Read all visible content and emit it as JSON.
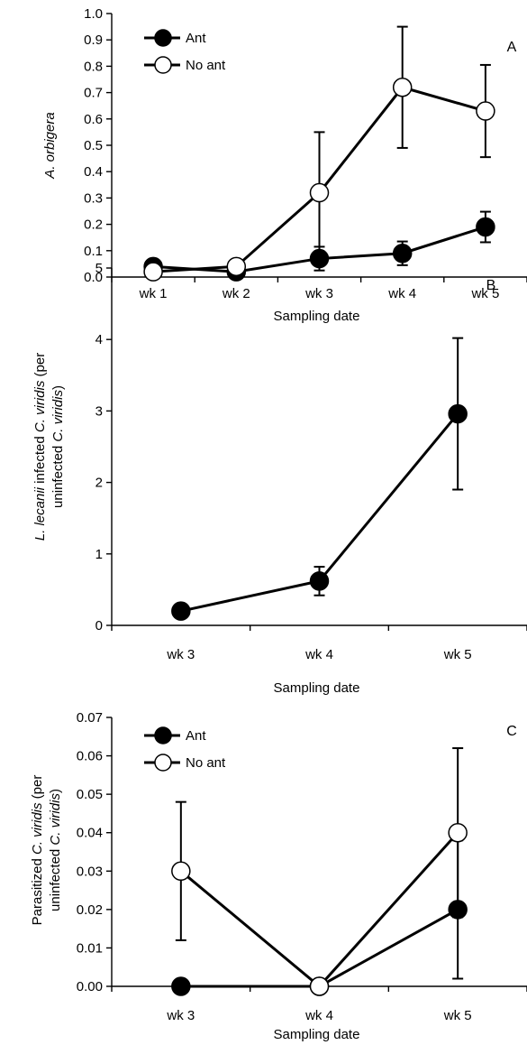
{
  "chart_data": [
    {
      "type": "line",
      "panel_label": "A",
      "categories": [
        "wk 1",
        "wk 2",
        "wk 3",
        "wk 4",
        "wk 5"
      ],
      "xlabel": "Sampling date",
      "ylabel_parts": [
        {
          "t": "A. orbigera",
          "i": true
        }
      ],
      "ylim": [
        0,
        1.0
      ],
      "yticks": [
        "0.0",
        "0.1",
        "0.2",
        "0.3",
        "0.4",
        "0.5",
        "0.6",
        "0.7",
        "0.8",
        "0.9",
        "1.0"
      ],
      "ytick_values": [
        0,
        0.1,
        0.2,
        0.3,
        0.4,
        0.5,
        0.6,
        0.7,
        0.8,
        0.9,
        1.0
      ],
      "legend": "top-left",
      "series": [
        {
          "name": "Ant",
          "marker": "filled",
          "values": [
            0.04,
            0.02,
            0.07,
            0.09,
            0.19
          ],
          "errors": [
            null,
            null,
            0.045,
            0.045,
            0.058
          ]
        },
        {
          "name": "No ant",
          "marker": "open",
          "values": [
            0.02,
            0.04,
            0.32,
            0.72,
            0.63
          ],
          "errors": [
            null,
            null,
            0.23,
            0.23,
            0.175
          ]
        }
      ]
    },
    {
      "type": "line",
      "panel_label": "B",
      "categories": [
        "wk 3",
        "wk 4",
        "wk 5"
      ],
      "xlabel": "Sampling date",
      "ylabel_lines": [
        [
          {
            "t": "L. lecanii",
            "i": true
          },
          {
            "t": " infected ",
            "i": false
          },
          {
            "t": "C. viridis",
            "i": true
          },
          {
            "t": " (per",
            "i": false
          }
        ],
        [
          {
            "t": "uninfected ",
            "i": false
          },
          {
            "t": "C. viridis",
            "i": true
          },
          {
            "t": ")",
            "i": false
          }
        ]
      ],
      "ylim": [
        0,
        5
      ],
      "yticks": [
        "0",
        "1",
        "2",
        "3",
        "4",
        "5"
      ],
      "ytick_values": [
        0,
        1,
        2,
        3,
        4,
        5
      ],
      "series": [
        {
          "name": "",
          "marker": "filled",
          "values": [
            0.2,
            0.62,
            2.96
          ],
          "errors": [
            null,
            0.2,
            1.06
          ]
        }
      ]
    },
    {
      "type": "line",
      "panel_label": "C",
      "categories": [
        "wk 3",
        "wk 4",
        "wk 5"
      ],
      "xlabel": "Sampling date",
      "ylabel_lines": [
        [
          {
            "t": "Parasitized ",
            "i": false
          },
          {
            "t": "C. viridis",
            "i": true
          },
          {
            "t": " (per",
            "i": false
          }
        ],
        [
          {
            "t": "uninfected ",
            "i": false
          },
          {
            "t": "C. viridis",
            "i": true
          },
          {
            "t": ")",
            "i": false
          }
        ]
      ],
      "ylim": [
        0,
        0.07
      ],
      "yticks": [
        "0.00",
        "0.01",
        "0.02",
        "0.03",
        "0.04",
        "0.05",
        "0.06",
        "0.07"
      ],
      "ytick_values": [
        0,
        0.01,
        0.02,
        0.03,
        0.04,
        0.05,
        0.06,
        0.07
      ],
      "legend": "top-left",
      "series": [
        {
          "name": "Ant",
          "marker": "filled",
          "values": [
            0.0,
            0.0,
            0.02
          ],
          "errors": [
            null,
            null,
            0.018
          ]
        },
        {
          "name": "No ant",
          "marker": "open",
          "values": [
            0.03,
            0.0,
            0.04
          ],
          "errors": [
            0.018,
            null,
            0.022
          ]
        }
      ]
    }
  ]
}
